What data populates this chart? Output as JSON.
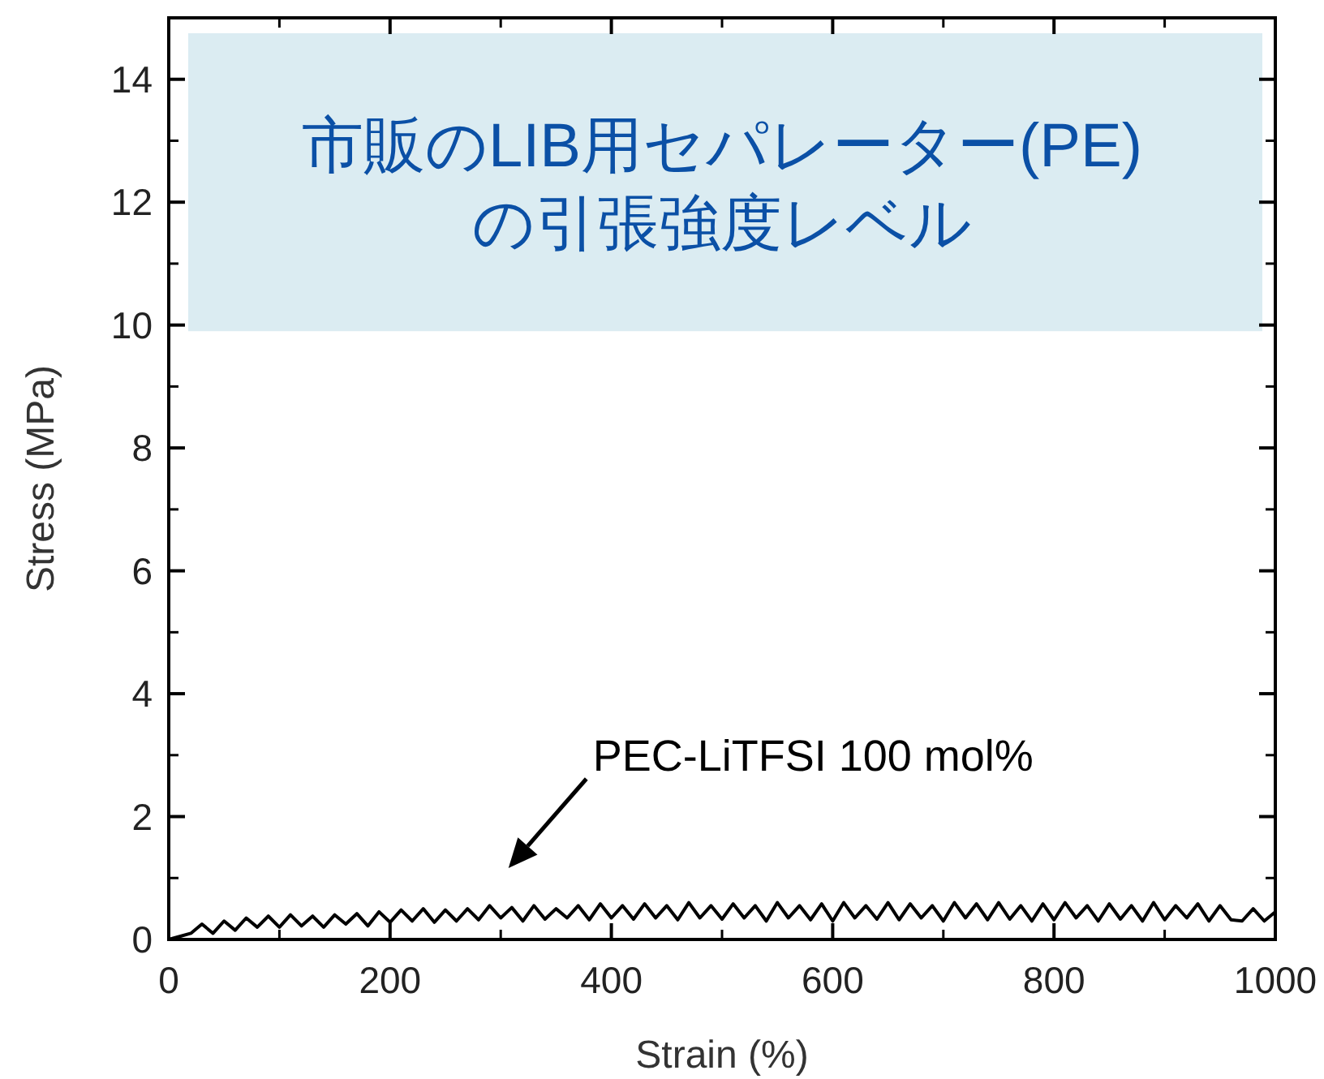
{
  "chart_data": {
    "type": "line",
    "xlabel": "Strain (%)",
    "ylabel": "Stress (MPa)",
    "xlim": [
      0,
      1000
    ],
    "ylim": [
      0,
      15
    ],
    "xticks": [
      0,
      200,
      400,
      600,
      800,
      1000
    ],
    "yticks": [
      0,
      2,
      4,
      6,
      8,
      10,
      12,
      14
    ],
    "grid": false,
    "marker": "none",
    "line_style": "solid",
    "bands": [
      {
        "axis": "y",
        "from": 9.9,
        "to": 14.75,
        "label": "市販のLIB用セパレーター(PE)\nの引張強度レベル",
        "color": "#dbecf2"
      }
    ],
    "annotations": [
      "PEC-LiTFSI 100 mol%"
    ],
    "series": [
      {
        "color": "#000000",
        "x": [
          0,
          10,
          20,
          30,
          40,
          50,
          60,
          70,
          80,
          90,
          100,
          110,
          120,
          130,
          140,
          150,
          160,
          170,
          180,
          190,
          200,
          210,
          220,
          230,
          240,
          250,
          260,
          270,
          280,
          290,
          300,
          310,
          320,
          330,
          340,
          350,
          360,
          370,
          380,
          390,
          400,
          410,
          420,
          430,
          440,
          450,
          460,
          470,
          480,
          490,
          500,
          510,
          520,
          530,
          540,
          550,
          560,
          570,
          580,
          590,
          600,
          610,
          620,
          630,
          640,
          650,
          660,
          670,
          680,
          690,
          700,
          710,
          720,
          730,
          740,
          750,
          760,
          770,
          780,
          790,
          800,
          810,
          820,
          830,
          840,
          850,
          860,
          870,
          880,
          890,
          900,
          910,
          920,
          930,
          940,
          950,
          960,
          970,
          980,
          990,
          1000
        ],
        "values": [
          0,
          0.05,
          0.1,
          0.25,
          0.1,
          0.3,
          0.15,
          0.35,
          0.2,
          0.38,
          0.2,
          0.4,
          0.22,
          0.38,
          0.2,
          0.4,
          0.25,
          0.42,
          0.22,
          0.45,
          0.28,
          0.48,
          0.3,
          0.5,
          0.28,
          0.48,
          0.3,
          0.5,
          0.32,
          0.55,
          0.35,
          0.52,
          0.3,
          0.55,
          0.33,
          0.5,
          0.35,
          0.55,
          0.32,
          0.58,
          0.35,
          0.55,
          0.33,
          0.58,
          0.35,
          0.55,
          0.32,
          0.6,
          0.35,
          0.55,
          0.33,
          0.58,
          0.35,
          0.55,
          0.3,
          0.6,
          0.35,
          0.55,
          0.32,
          0.58,
          0.3,
          0.6,
          0.35,
          0.55,
          0.33,
          0.6,
          0.32,
          0.58,
          0.35,
          0.55,
          0.3,
          0.6,
          0.35,
          0.58,
          0.32,
          0.6,
          0.33,
          0.55,
          0.3,
          0.58,
          0.32,
          0.6,
          0.35,
          0.55,
          0.3,
          0.58,
          0.33,
          0.55,
          0.3,
          0.6,
          0.32,
          0.55,
          0.35,
          0.58,
          0.3,
          0.55,
          0.32,
          0.3,
          0.5,
          0.3,
          0.45
        ]
      }
    ]
  }
}
